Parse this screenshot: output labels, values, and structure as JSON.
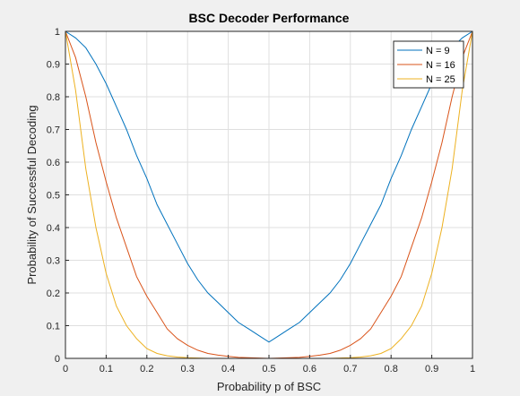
{
  "chart_data": {
    "type": "line",
    "title": "BSC Decoder Performance",
    "xlabel": "Probability p of BSC",
    "ylabel": "Probability of Successful Decoding",
    "xlim": [
      0,
      1
    ],
    "ylim": [
      0,
      1
    ],
    "grid": true,
    "legend_position": "top-right",
    "x_ticks": [
      "0",
      "0.1",
      "0.2",
      "0.3",
      "0.4",
      "0.5",
      "0.6",
      "0.7",
      "0.8",
      "0.9",
      "1"
    ],
    "y_ticks": [
      "0",
      "0.1",
      "0.2",
      "0.3",
      "0.4",
      "0.5",
      "0.6",
      "0.7",
      "0.8",
      "0.9",
      "1"
    ],
    "x": [
      0,
      0.025,
      0.05,
      0.075,
      0.1,
      0.125,
      0.15,
      0.175,
      0.2,
      0.225,
      0.25,
      0.275,
      0.3,
      0.325,
      0.35,
      0.375,
      0.4,
      0.425,
      0.45,
      0.475,
      0.5,
      0.525,
      0.55,
      0.575,
      0.6,
      0.625,
      0.65,
      0.675,
      0.7,
      0.725,
      0.75,
      0.775,
      0.8,
      0.825,
      0.85,
      0.875,
      0.9,
      0.925,
      0.95,
      0.975,
      1
    ],
    "series": [
      {
        "name": "N = 9",
        "color": "#0072BD",
        "values": [
          1.0,
          0.98,
          0.95,
          0.9,
          0.84,
          0.77,
          0.7,
          0.62,
          0.55,
          0.47,
          0.41,
          0.35,
          0.29,
          0.24,
          0.2,
          0.17,
          0.14,
          0.11,
          0.09,
          0.07,
          0.05,
          0.07,
          0.09,
          0.11,
          0.14,
          0.17,
          0.2,
          0.24,
          0.29,
          0.35,
          0.41,
          0.47,
          0.55,
          0.62,
          0.7,
          0.77,
          0.84,
          0.9,
          0.95,
          0.98,
          1.0
        ]
      },
      {
        "name": "N = 16",
        "color": "#D95319",
        "values": [
          1.0,
          0.92,
          0.8,
          0.66,
          0.54,
          0.43,
          0.34,
          0.25,
          0.19,
          0.14,
          0.09,
          0.06,
          0.04,
          0.025,
          0.015,
          0.01,
          0.006,
          0.003,
          0.002,
          0.001,
          0.0,
          0.001,
          0.002,
          0.003,
          0.006,
          0.01,
          0.015,
          0.025,
          0.04,
          0.06,
          0.09,
          0.14,
          0.19,
          0.25,
          0.34,
          0.43,
          0.54,
          0.66,
          0.8,
          0.92,
          1.0
        ]
      },
      {
        "name": "N = 25",
        "color": "#EDB120",
        "values": [
          1.0,
          0.82,
          0.58,
          0.4,
          0.26,
          0.16,
          0.1,
          0.06,
          0.03,
          0.015,
          0.008,
          0.004,
          0.002,
          0.001,
          0.0,
          0.0,
          0.0,
          0.0,
          0.0,
          0.0,
          0.0,
          0.0,
          0.0,
          0.0,
          0.0,
          0.0,
          0.0,
          0.001,
          0.002,
          0.004,
          0.008,
          0.015,
          0.03,
          0.06,
          0.1,
          0.16,
          0.26,
          0.4,
          0.58,
          0.82,
          1.0
        ]
      }
    ]
  }
}
